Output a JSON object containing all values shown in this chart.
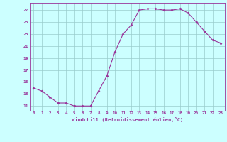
{
  "x": [
    0,
    1,
    2,
    3,
    4,
    5,
    6,
    7,
    8,
    9,
    10,
    11,
    12,
    13,
    14,
    15,
    16,
    17,
    18,
    19,
    20,
    21,
    22,
    23
  ],
  "y": [
    14.0,
    13.5,
    12.5,
    11.5,
    11.5,
    11.0,
    11.0,
    11.0,
    13.5,
    16.0,
    20.0,
    23.0,
    24.5,
    27.0,
    27.2,
    27.2,
    27.0,
    27.0,
    27.2,
    26.5,
    25.0,
    23.5,
    22.0,
    21.5
  ],
  "line_color": "#993399",
  "marker": "D",
  "marker_size": 1.5,
  "bg_color": "#ccffff",
  "grid_color": "#99cccc",
  "xlabel": "Windchill (Refroidissement éolien,°C)",
  "ylabel_ticks": [
    11,
    13,
    15,
    17,
    19,
    21,
    23,
    25,
    27
  ],
  "xlim": [
    -0.5,
    23.5
  ],
  "ylim": [
    10.2,
    28.2
  ],
  "title": ""
}
